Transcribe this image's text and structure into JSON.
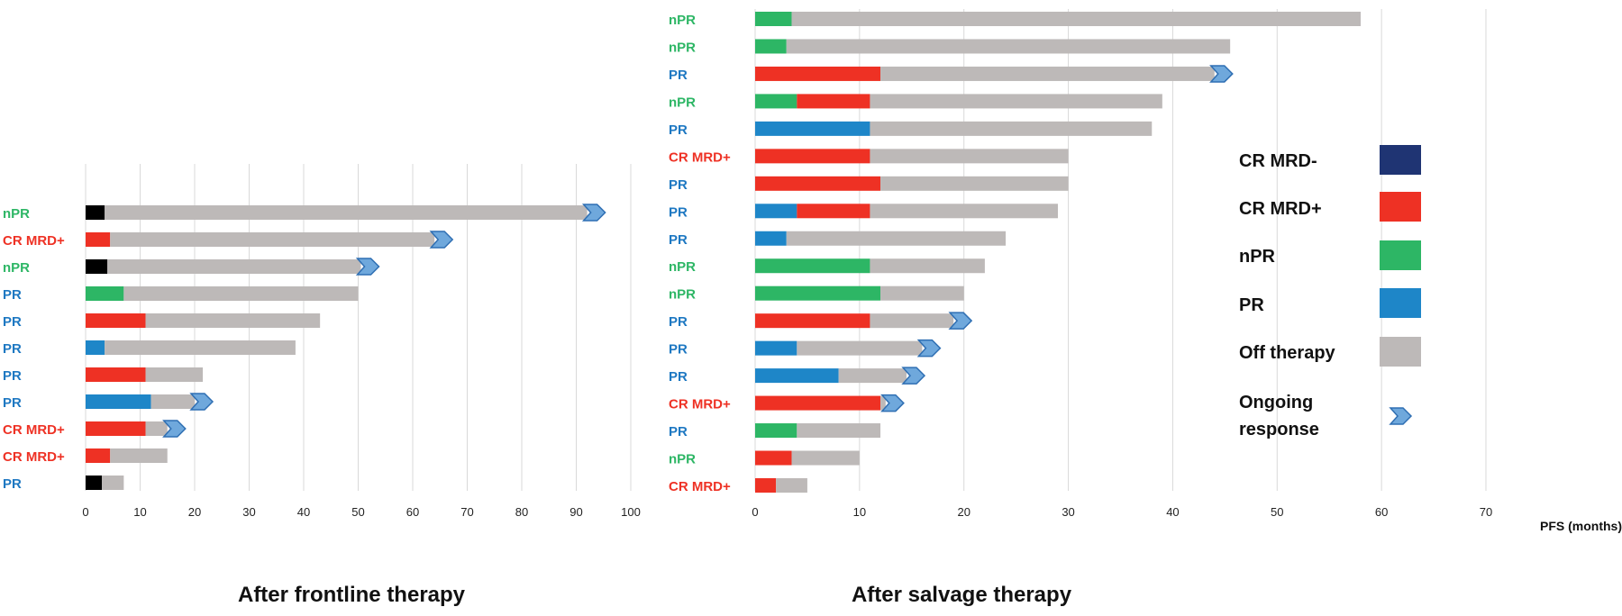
{
  "colors": {
    "CR MRD-": "#1f3473",
    "CR MRD+": "#ee3124",
    "nPR": "#2db665",
    "PR": "#1e86c8",
    "Off therapy": "#bdb9b8",
    "first_segment_frontline_other": "#000000",
    "ongoing": "#6fa8dc",
    "grid": "#d9d9d9",
    "label_CR MRD+": "#ee3124",
    "label_nPR": "#2db665",
    "label_PR": "#1e78c2"
  },
  "legend": {
    "items": [
      {
        "label": "CR MRD-",
        "color": "#1f3473"
      },
      {
        "label": "CR MRD+",
        "color": "#ee3124"
      },
      {
        "label": "nPR",
        "color": "#2db665"
      },
      {
        "label": "PR",
        "color": "#1e86c8"
      },
      {
        "label": "Off therapy",
        "color": "#bdb9b8"
      }
    ],
    "ongoing_label_line1": "Ongoing",
    "ongoing_label_line2": "response"
  },
  "chart_data": [
    {
      "type": "bar",
      "orientation": "horizontal-stacked",
      "title": "After frontline therapy",
      "xlabel": "",
      "xlim": [
        0,
        100
      ],
      "xticks": [
        0,
        10,
        20,
        30,
        40,
        50,
        60,
        70,
        80,
        90,
        100
      ],
      "grid": true,
      "rows": [
        {
          "label": "nPR",
          "segments": [
            {
              "status": "other",
              "start": 0,
              "end": 3.5
            },
            {
              "status": "Off therapy",
              "start": 3.5,
              "end": 92
            }
          ],
          "ongoing": true
        },
        {
          "label": "CR MRD+",
          "segments": [
            {
              "status": "CR MRD+",
              "start": 0,
              "end": 4.5
            },
            {
              "status": "Off therapy",
              "start": 4.5,
              "end": 64
            }
          ],
          "ongoing": true
        },
        {
          "label": "nPR",
          "segments": [
            {
              "status": "other",
              "start": 0,
              "end": 4
            },
            {
              "status": "Off therapy",
              "start": 4,
              "end": 50.5
            }
          ],
          "ongoing": true
        },
        {
          "label": "PR",
          "segments": [
            {
              "status": "nPR",
              "start": 0,
              "end": 7
            },
            {
              "status": "Off therapy",
              "start": 7,
              "end": 50
            }
          ],
          "ongoing": false
        },
        {
          "label": "PR",
          "segments": [
            {
              "status": "CR MRD+",
              "start": 0,
              "end": 11
            },
            {
              "status": "Off therapy",
              "start": 11,
              "end": 43
            }
          ],
          "ongoing": false
        },
        {
          "label": "PR",
          "segments": [
            {
              "status": "PR",
              "start": 0,
              "end": 3.5
            },
            {
              "status": "Off therapy",
              "start": 3.5,
              "end": 38.5
            }
          ],
          "ongoing": false
        },
        {
          "label": "PR",
          "segments": [
            {
              "status": "CR MRD+",
              "start": 0,
              "end": 11
            },
            {
              "status": "Off therapy",
              "start": 11,
              "end": 21.5
            }
          ],
          "ongoing": false
        },
        {
          "label": "PR",
          "segments": [
            {
              "status": "PR",
              "start": 0,
              "end": 12
            },
            {
              "status": "Off therapy",
              "start": 12,
              "end": 20
            }
          ],
          "ongoing": true
        },
        {
          "label": "CR MRD+",
          "segments": [
            {
              "status": "CR MRD+",
              "start": 0,
              "end": 11
            },
            {
              "status": "Off therapy",
              "start": 11,
              "end": 15
            }
          ],
          "ongoing": true
        },
        {
          "label": "CR MRD+",
          "segments": [
            {
              "status": "CR MRD+",
              "start": 0,
              "end": 4.5
            },
            {
              "status": "Off therapy",
              "start": 4.5,
              "end": 15
            }
          ],
          "ongoing": false
        },
        {
          "label": "PR",
          "segments": [
            {
              "status": "other",
              "start": 0,
              "end": 3
            },
            {
              "status": "Off therapy",
              "start": 3,
              "end": 7
            }
          ],
          "ongoing": false
        }
      ]
    },
    {
      "type": "bar",
      "orientation": "horizontal-stacked",
      "title": "After salvage therapy",
      "xlabel": "PFS (months)",
      "xlim": [
        0,
        70
      ],
      "xticks": [
        0,
        10,
        20,
        30,
        40,
        50,
        60,
        70
      ],
      "grid": true,
      "rows": [
        {
          "label": "nPR",
          "segments": [
            {
              "status": "nPR",
              "start": 0,
              "end": 3.5
            },
            {
              "status": "Off therapy",
              "start": 3.5,
              "end": 58
            }
          ],
          "ongoing": false
        },
        {
          "label": "nPR",
          "segments": [
            {
              "status": "nPR",
              "start": 0,
              "end": 3
            },
            {
              "status": "Off therapy",
              "start": 3,
              "end": 45.5
            }
          ],
          "ongoing": false
        },
        {
          "label": "PR",
          "segments": [
            {
              "status": "CR MRD+",
              "start": 0,
              "end": 12
            },
            {
              "status": "Off therapy",
              "start": 12,
              "end": 44
            }
          ],
          "ongoing": true
        },
        {
          "label": "nPR",
          "segments": [
            {
              "status": "nPR",
              "start": 0,
              "end": 4
            },
            {
              "status": "CR MRD+",
              "start": 4,
              "end": 11
            },
            {
              "status": "Off therapy",
              "start": 11,
              "end": 39
            }
          ],
          "ongoing": false
        },
        {
          "label": "PR",
          "segments": [
            {
              "status": "PR",
              "start": 0,
              "end": 11
            },
            {
              "status": "Off therapy",
              "start": 11,
              "end": 38
            }
          ],
          "ongoing": false
        },
        {
          "label": "CR MRD+",
          "segments": [
            {
              "status": "CR MRD+",
              "start": 0,
              "end": 11
            },
            {
              "status": "Off therapy",
              "start": 11,
              "end": 30
            }
          ],
          "ongoing": false
        },
        {
          "label": "PR",
          "segments": [
            {
              "status": "CR MRD+",
              "start": 0,
              "end": 12
            },
            {
              "status": "Off therapy",
              "start": 12,
              "end": 30
            }
          ],
          "ongoing": false
        },
        {
          "label": "PR",
          "segments": [
            {
              "status": "PR",
              "start": 0,
              "end": 4
            },
            {
              "status": "CR MRD+",
              "start": 4,
              "end": 11
            },
            {
              "status": "Off therapy",
              "start": 11,
              "end": 29
            }
          ],
          "ongoing": false
        },
        {
          "label": "PR",
          "segments": [
            {
              "status": "PR",
              "start": 0,
              "end": 3
            },
            {
              "status": "Off therapy",
              "start": 3,
              "end": 24
            }
          ],
          "ongoing": false
        },
        {
          "label": "nPR",
          "segments": [
            {
              "status": "nPR",
              "start": 0,
              "end": 11
            },
            {
              "status": "Off therapy",
              "start": 11,
              "end": 22
            }
          ],
          "ongoing": false
        },
        {
          "label": "nPR",
          "segments": [
            {
              "status": "nPR",
              "start": 0,
              "end": 12
            },
            {
              "status": "Off therapy",
              "start": 12,
              "end": 20
            }
          ],
          "ongoing": false
        },
        {
          "label": "PR",
          "segments": [
            {
              "status": "CR MRD+",
              "start": 0,
              "end": 11
            },
            {
              "status": "Off therapy",
              "start": 11,
              "end": 19
            }
          ],
          "ongoing": true
        },
        {
          "label": "PR",
          "segments": [
            {
              "status": "PR",
              "start": 0,
              "end": 4
            },
            {
              "status": "Off therapy",
              "start": 4,
              "end": 16
            }
          ],
          "ongoing": true
        },
        {
          "label": "PR",
          "segments": [
            {
              "status": "PR",
              "start": 0,
              "end": 8
            },
            {
              "status": "Off therapy",
              "start": 8,
              "end": 14.5
            }
          ],
          "ongoing": true
        },
        {
          "label": "CR MRD+",
          "segments": [
            {
              "status": "CR MRD+",
              "start": 0,
              "end": 12
            },
            {
              "status": "Off therapy",
              "start": 12,
              "end": 12.5
            }
          ],
          "ongoing": true
        },
        {
          "label": "PR",
          "segments": [
            {
              "status": "nPR",
              "start": 0,
              "end": 4
            },
            {
              "status": "Off therapy",
              "start": 4,
              "end": 12
            }
          ],
          "ongoing": false
        },
        {
          "label": "nPR",
          "segments": [
            {
              "status": "CR MRD+",
              "start": 0,
              "end": 3.5
            },
            {
              "status": "Off therapy",
              "start": 3.5,
              "end": 10
            }
          ],
          "ongoing": false
        },
        {
          "label": "CR MRD+",
          "segments": [
            {
              "status": "CR MRD+",
              "start": 0,
              "end": 2
            },
            {
              "status": "Off therapy",
              "start": 2,
              "end": 5
            }
          ],
          "ongoing": false
        }
      ]
    }
  ]
}
